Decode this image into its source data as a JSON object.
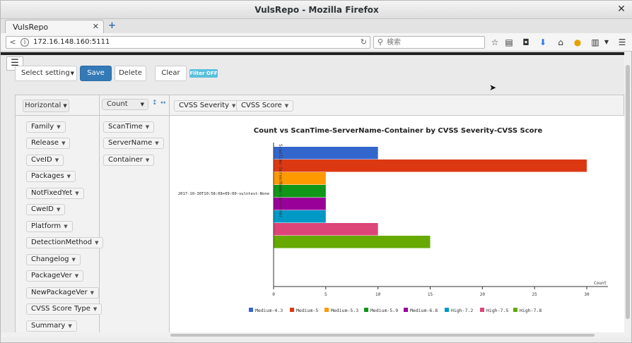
{
  "window": {
    "title": "VulsRepo - Mozilla Firefox"
  },
  "tab": {
    "label": "VulsRepo"
  },
  "urlbar": {
    "url": "172.16.148.160:5111"
  },
  "searchbar": {
    "placeholder": "検索"
  },
  "toolbar": {
    "select_setting": "Select setting",
    "save": "Save",
    "delete": "Delete",
    "clear": "Clear",
    "filter": "Filter OFF"
  },
  "pivot": {
    "orientation": "Horizontal",
    "aggregator": "Count",
    "col_fields": [
      "CVSS Severity",
      "CVSS Score"
    ],
    "row_fields": [
      "ScanTime",
      "ServerName",
      "Container"
    ],
    "unused_fields": [
      "Family",
      "Release",
      "CveID",
      "Packages",
      "NotFixedYet",
      "CweID",
      "Platform",
      "DetectionMethod",
      "Changelog",
      "PackageVer",
      "NewPackageVer",
      "CVSS Score Type",
      "Summary"
    ]
  },
  "chart_data": {
    "type": "bar",
    "orientation": "horizontal",
    "title": "Count vs ScanTime-ServerName-Container by CVSS Severity-CVSS Score",
    "ylabel": "ScanTime-ServerName-Container",
    "xlabel": "Count",
    "categories": [
      "2017-10-30T10:58:08+09:00-vulntest-None"
    ],
    "xlim": [
      0,
      30
    ],
    "xticks": [
      0,
      5,
      10,
      15,
      20,
      25,
      30
    ],
    "series": [
      {
        "name": "Medium-4.3",
        "values": [
          10
        ],
        "color": "#3366cc"
      },
      {
        "name": "Medium-5",
        "values": [
          30
        ],
        "color": "#dc3912"
      },
      {
        "name": "Medium-5.3",
        "values": [
          5
        ],
        "color": "#ff9900"
      },
      {
        "name": "Medium-5.9",
        "values": [
          5
        ],
        "color": "#109618"
      },
      {
        "name": "Medium-6.8",
        "values": [
          5
        ],
        "color": "#990099"
      },
      {
        "name": "High-7.2",
        "values": [
          5
        ],
        "color": "#0099c6"
      },
      {
        "name": "High-7.5",
        "values": [
          10
        ],
        "color": "#dd4477"
      },
      {
        "name": "High-7.8",
        "values": [
          15
        ],
        "color": "#66aa00"
      }
    ],
    "legend_position": "bottom",
    "grid": false
  }
}
